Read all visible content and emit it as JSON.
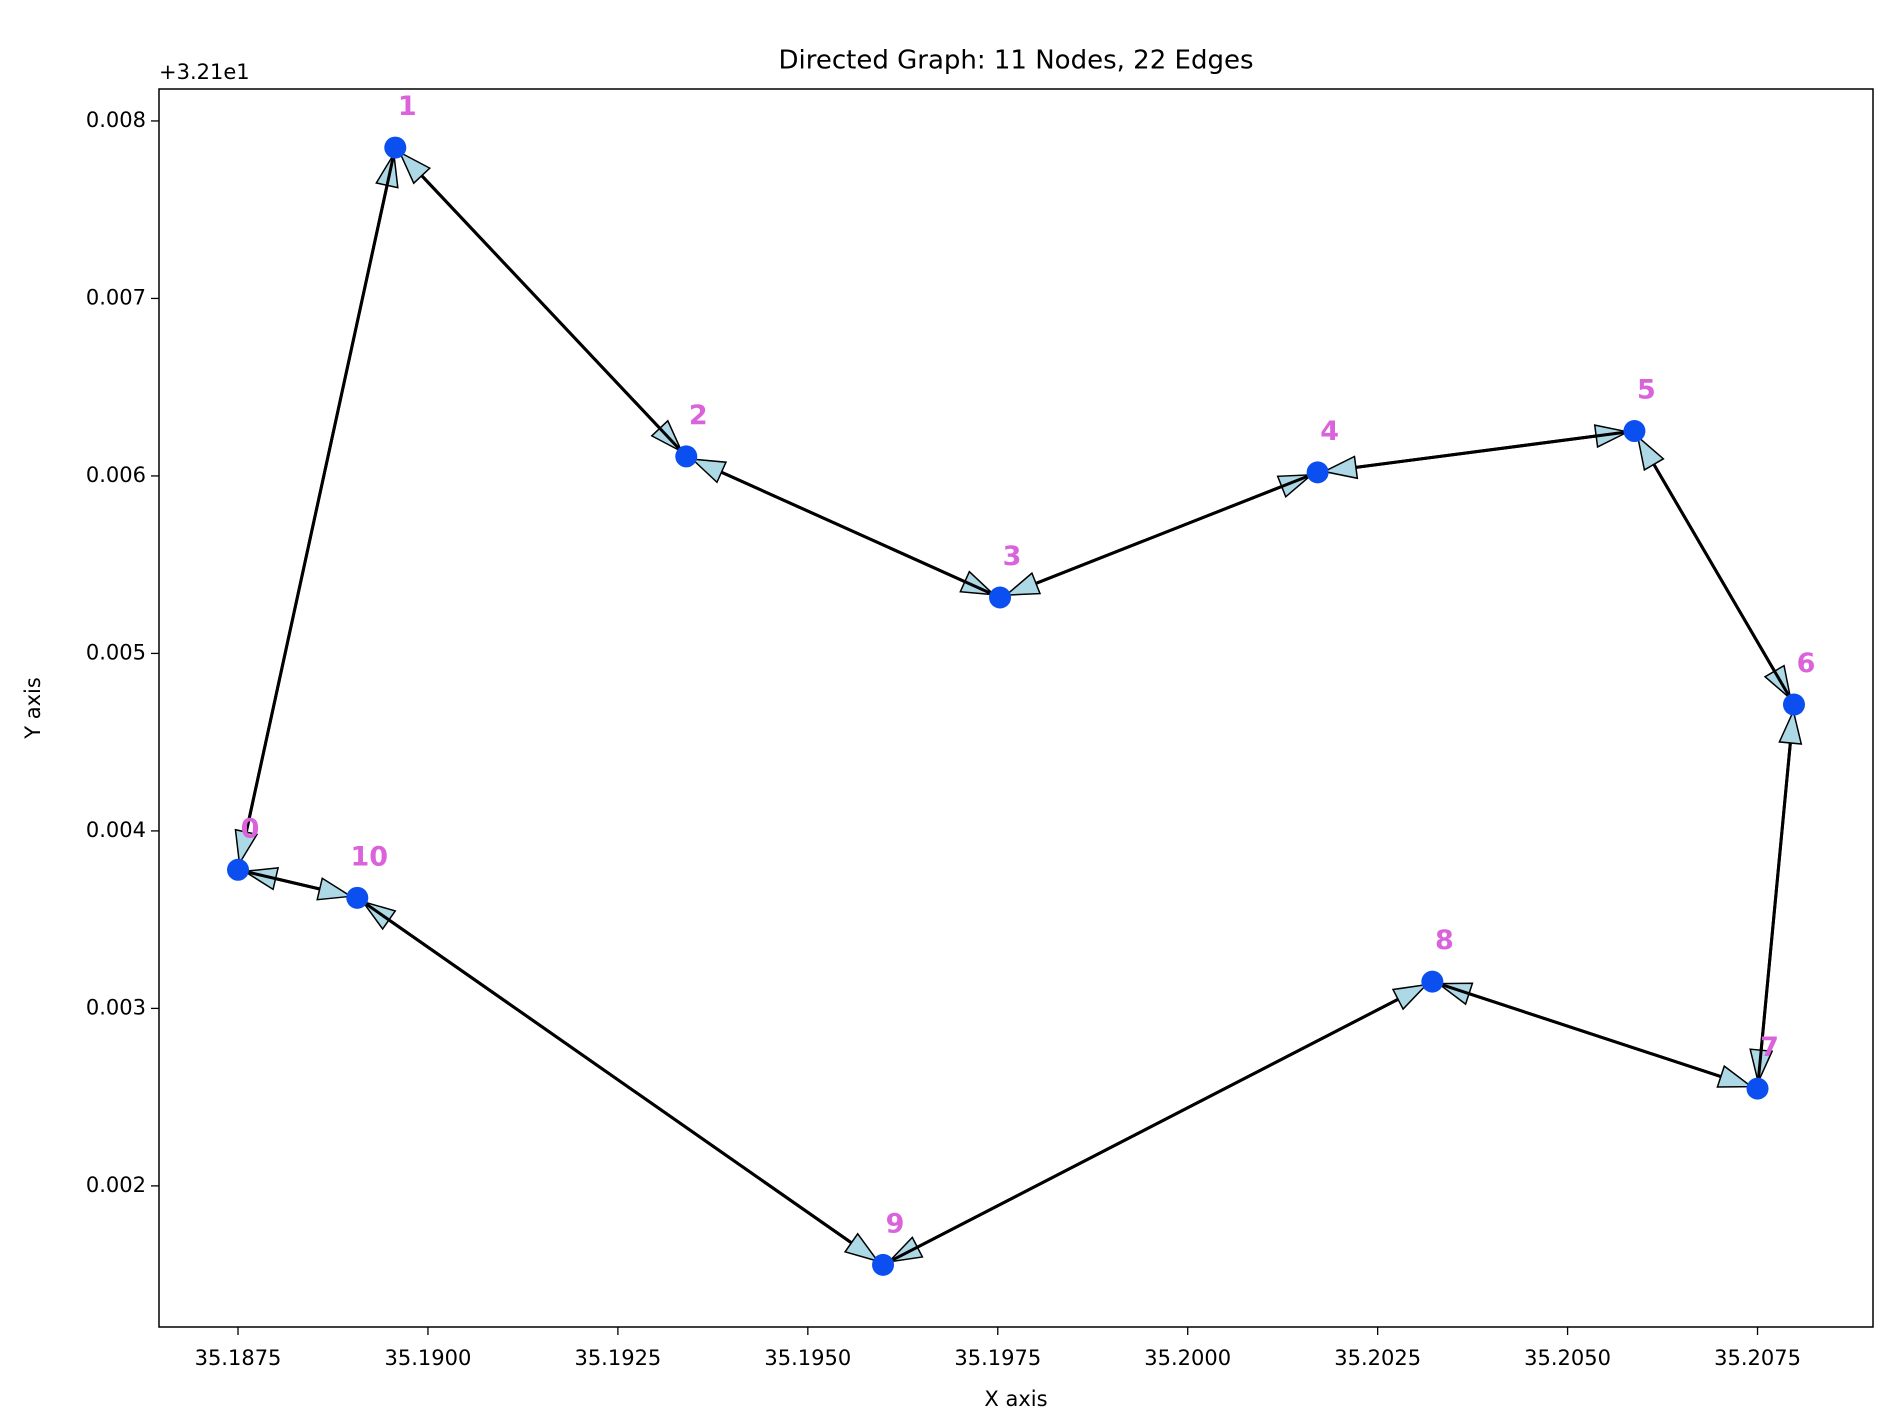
{
  "chart_data": {
    "type": "graph",
    "title": "Directed Graph: 11 Nodes, 22 Edges",
    "x_label": "X axis",
    "y_label": "Y axis",
    "y_offset_label": "+3.21e1",
    "xlim": [
      35.18646,
      35.20902
    ],
    "ylim": [
      0.001205,
      0.00818
    ],
    "xticks": [
      35.1875,
      {
        "value": 35.19,
        "label": "35.1900"
      },
      35.1925,
      {
        "value": 35.195,
        "label": "35.1950"
      },
      35.1975,
      {
        "value": 35.2,
        "label": "35.2000"
      },
      35.2025,
      {
        "value": 35.205,
        "label": "35.2050"
      },
      35.2075
    ],
    "yticks": [
      0.002,
      0.003,
      0.004,
      0.005,
      0.006,
      0.007,
      0.008
    ],
    "node_color": "#0b4ff0",
    "label_color": "#da62da",
    "arrow_color": "#add8e6",
    "nodes": [
      {
        "label": "0",
        "x": 35.1875,
        "y": 0.003781
      },
      {
        "label": "1",
        "x": 35.18957,
        "y": 0.00785
      },
      {
        "label": "2",
        "x": 35.1934,
        "y": 0.00611
      },
      {
        "label": "3",
        "x": 35.19753,
        "y": 0.005315
      },
      {
        "label": "4",
        "x": 35.20171,
        "y": 0.00602
      },
      {
        "label": "5",
        "x": 35.20588,
        "y": 0.006253
      },
      {
        "label": "6",
        "x": 35.20798,
        "y": 0.004712
      },
      {
        "label": "7",
        "x": 35.2075,
        "y": 0.002548
      },
      {
        "label": "8",
        "x": 35.20322,
        "y": 0.003151
      },
      {
        "label": "9",
        "x": 35.19599,
        "y": 0.001555
      },
      {
        "label": "10",
        "x": 35.18907,
        "y": 0.003623
      }
    ],
    "edges": [
      [
        0,
        1
      ],
      [
        1,
        0
      ],
      [
        1,
        2
      ],
      [
        2,
        1
      ],
      [
        2,
        3
      ],
      [
        3,
        2
      ],
      [
        3,
        4
      ],
      [
        4,
        3
      ],
      [
        4,
        5
      ],
      [
        5,
        4
      ],
      [
        5,
        6
      ],
      [
        6,
        5
      ],
      [
        6,
        7
      ],
      [
        7,
        6
      ],
      [
        7,
        8
      ],
      [
        8,
        7
      ],
      [
        8,
        9
      ],
      [
        9,
        8
      ],
      [
        9,
        10
      ],
      [
        10,
        9
      ],
      [
        10,
        0
      ],
      [
        0,
        10
      ]
    ]
  }
}
